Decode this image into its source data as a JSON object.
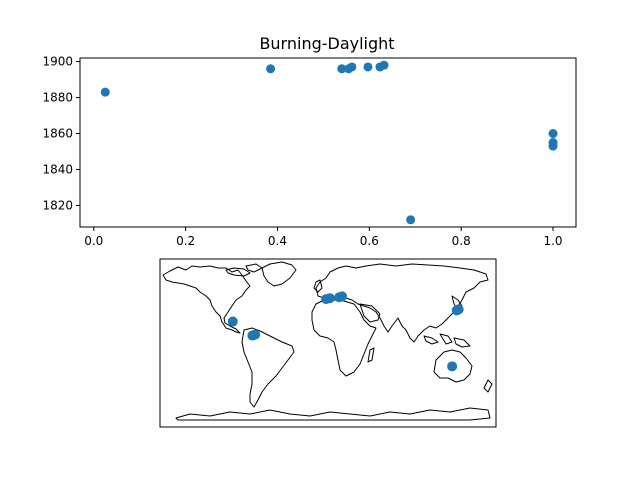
{
  "chart_data": [
    {
      "type": "scatter",
      "title": "Burning-Daylight",
      "xlabel": "",
      "ylabel": "",
      "xlim": [
        -0.03,
        1.05
      ],
      "ylim": [
        1808,
        1902
      ],
      "x_ticks": [
        0.0,
        0.2,
        0.4,
        0.6,
        0.8,
        1.0
      ],
      "x_tick_labels": [
        "0.0",
        "0.2",
        "0.4",
        "0.6",
        "0.8",
        "1.0"
      ],
      "y_ticks": [
        1820,
        1840,
        1860,
        1880,
        1900
      ],
      "y_tick_labels": [
        "1820",
        "1840",
        "1860",
        "1880",
        "1900"
      ],
      "grid": false,
      "color": "#1f77b4",
      "points": [
        {
          "x": 0.025,
          "y": 1883
        },
        {
          "x": 0.385,
          "y": 1896
        },
        {
          "x": 0.54,
          "y": 1896
        },
        {
          "x": 0.555,
          "y": 1896
        },
        {
          "x": 0.562,
          "y": 1897
        },
        {
          "x": 0.597,
          "y": 1897
        },
        {
          "x": 0.623,
          "y": 1897
        },
        {
          "x": 0.632,
          "y": 1898
        },
        {
          "x": 0.69,
          "y": 1812
        },
        {
          "x": 1.0,
          "y": 1860
        },
        {
          "x": 1.0,
          "y": 1855
        },
        {
          "x": 1.0,
          "y": 1853
        }
      ]
    },
    {
      "type": "scatter",
      "subtype": "geographic map (world coastlines)",
      "xlim": [
        -180,
        180
      ],
      "ylim": [
        -90,
        90
      ],
      "color": "#1f77b4",
      "points": [
        {
          "lon": -102,
          "lat": 23
        },
        {
          "lon": -81,
          "lat": 8
        },
        {
          "lon": -78,
          "lat": 9
        },
        {
          "lon": -2,
          "lat": 47
        },
        {
          "lon": 2,
          "lat": 48
        },
        {
          "lon": 12,
          "lat": 49
        },
        {
          "lon": 15,
          "lat": 50
        },
        {
          "lon": 138,
          "lat": 35
        },
        {
          "lon": 140,
          "lat": 36
        },
        {
          "lon": 133,
          "lat": -25
        }
      ]
    }
  ]
}
